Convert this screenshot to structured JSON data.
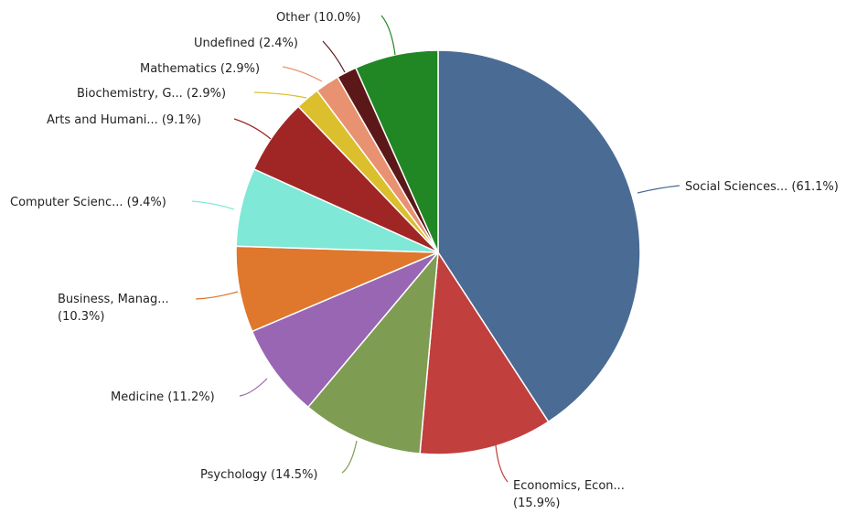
{
  "chart_data": {
    "type": "pie",
    "title": "",
    "slices": [
      {
        "label": "Social Sciences...",
        "percent": "(61.1%)",
        "value": 61.1,
        "color": "#4a6b93"
      },
      {
        "label": "Economics, Econ...",
        "percent": "(15.9%)",
        "value": 15.9,
        "color": "#c13f3c"
      },
      {
        "label": "Psychology",
        "percent": "(14.5%)",
        "value": 14.5,
        "color": "#7e9d53"
      },
      {
        "label": "Medicine",
        "percent": "(11.2%)",
        "value": 11.2,
        "color": "#9866b3"
      },
      {
        "label": "Business, Manag...",
        "percent": "(10.3%)",
        "value": 10.3,
        "color": "#df772d"
      },
      {
        "label": "Computer Scienc...",
        "percent": "(9.4%)",
        "value": 9.4,
        "color": "#7fe8d6"
      },
      {
        "label": "Arts and Humani...",
        "percent": "(9.1%)",
        "value": 9.1,
        "color": "#a02625"
      },
      {
        "label": "Biochemistry, G...",
        "percent": "(2.9%)",
        "value": 2.9,
        "color": "#dbbf2d"
      },
      {
        "label": "Mathematics",
        "percent": "(2.9%)",
        "value": 2.9,
        "color": "#e99271"
      },
      {
        "label": "Undefined",
        "percent": "(2.4%)",
        "value": 2.4,
        "color": "#5c1819"
      },
      {
        "label": "Other",
        "percent": "(10.0%)",
        "value": 10.0,
        "color": "#208724"
      }
    ]
  }
}
